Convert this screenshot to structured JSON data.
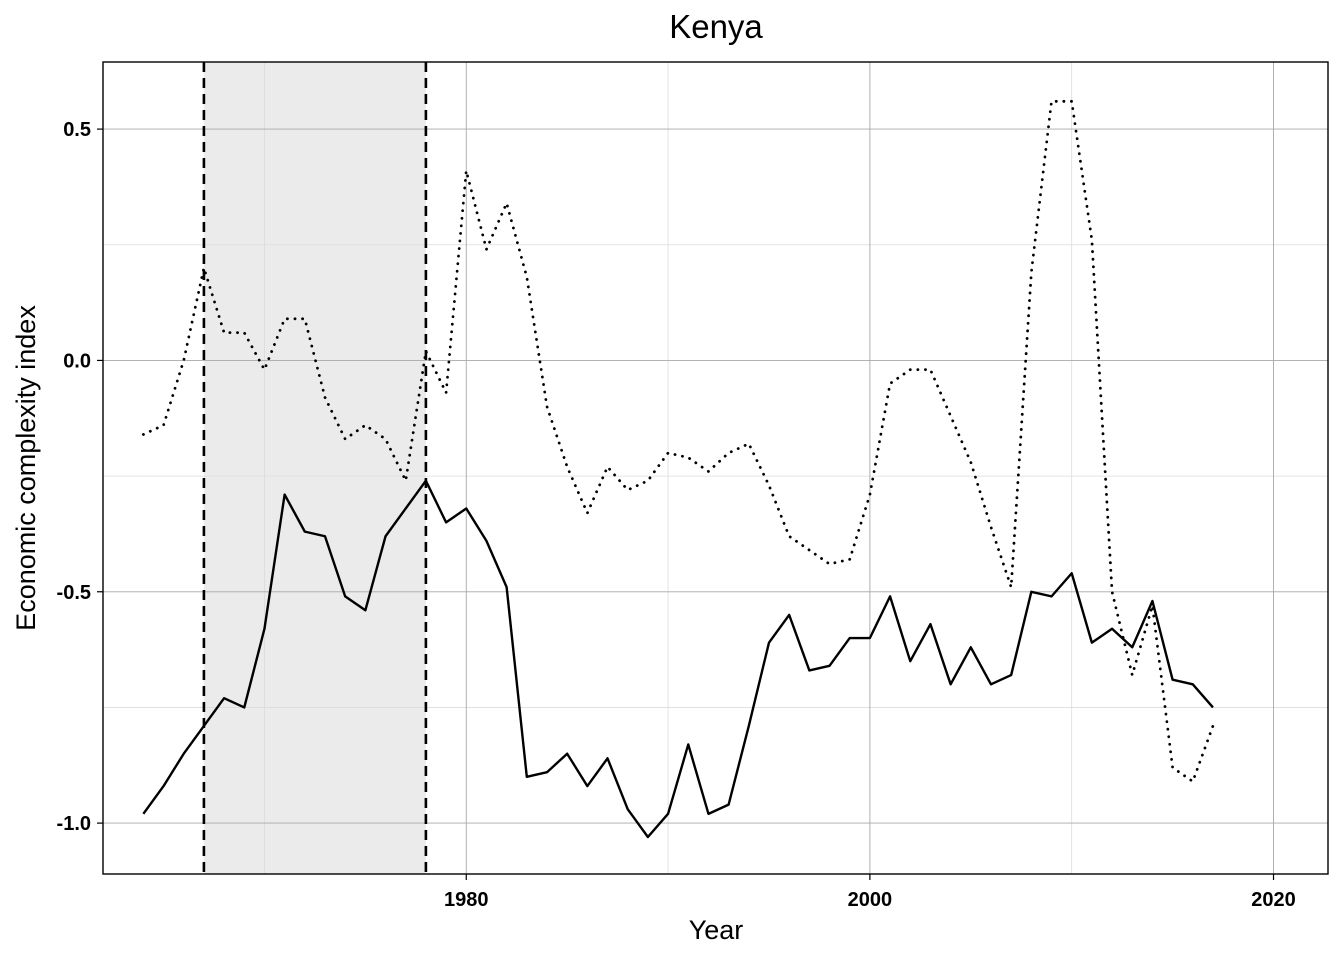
{
  "chart_data": {
    "type": "line",
    "title": "Kenya",
    "xlabel": "Year",
    "ylabel": "Economic complexity index",
    "xlim": [
      1962.0,
      2022.7
    ],
    "ylim": [
      -1.11,
      0.645
    ],
    "x_ticks": [
      1980,
      2000,
      2020
    ],
    "x_tick_labels": [
      "1980",
      "2000",
      "2020"
    ],
    "y_ticks": [
      -1.0,
      -0.5,
      0.0,
      0.5
    ],
    "y_tick_labels": [
      "-1.0",
      "-0.5",
      "0.0",
      "0.5"
    ],
    "grid": true,
    "legend": "none",
    "shaded_region": {
      "from": 1967,
      "to": 1978,
      "color": "#ebebeb"
    },
    "vertical_lines": [
      {
        "x": 1967,
        "style": "dashed"
      },
      {
        "x": 1978,
        "style": "dashed"
      }
    ],
    "x": [
      1964,
      1965,
      1966,
      1967,
      1968,
      1969,
      1970,
      1971,
      1972,
      1973,
      1974,
      1975,
      1976,
      1977,
      1978,
      1979,
      1980,
      1981,
      1982,
      1983,
      1984,
      1985,
      1986,
      1987,
      1988,
      1989,
      1990,
      1991,
      1992,
      1993,
      1994,
      1995,
      1996,
      1997,
      1998,
      1999,
      2000,
      2001,
      2002,
      2003,
      2004,
      2005,
      2006,
      2007,
      2008,
      2009,
      2010,
      2011,
      2012,
      2013,
      2014,
      2015,
      2016,
      2017
    ],
    "series": [
      {
        "style": "solid",
        "color": "#000000",
        "values": [
          -0.98,
          -0.92,
          -0.85,
          -0.79,
          -0.73,
          -0.75,
          -0.58,
          -0.29,
          -0.37,
          -0.38,
          -0.51,
          -0.54,
          -0.38,
          -0.32,
          -0.26,
          -0.35,
          -0.32,
          -0.39,
          -0.49,
          -0.9,
          -0.89,
          -0.85,
          -0.92,
          -0.86,
          -0.97,
          -1.03,
          -0.98,
          -0.83,
          -0.98,
          -0.96,
          -0.79,
          -0.61,
          -0.55,
          -0.67,
          -0.66,
          -0.6,
          -0.6,
          -0.51,
          -0.65,
          -0.57,
          -0.7,
          -0.62,
          -0.7,
          -0.68,
          -0.5,
          -0.51,
          -0.46,
          -0.61,
          -0.58,
          -0.62,
          -0.52,
          -0.69,
          -0.7,
          -0.75
        ]
      },
      {
        "style": "dotted",
        "color": "#000000",
        "values": [
          -0.16,
          -0.14,
          0.0,
          0.2,
          0.06,
          0.06,
          -0.02,
          0.09,
          0.09,
          -0.08,
          -0.17,
          -0.14,
          -0.17,
          -0.26,
          0.02,
          -0.07,
          0.41,
          0.24,
          0.34,
          0.18,
          -0.1,
          -0.23,
          -0.33,
          -0.23,
          -0.28,
          -0.26,
          -0.2,
          -0.21,
          -0.24,
          -0.2,
          -0.18,
          -0.27,
          -0.38,
          -0.41,
          -0.44,
          -0.43,
          -0.29,
          -0.05,
          -0.02,
          -0.02,
          -0.12,
          -0.22,
          -0.36,
          -0.49,
          0.19,
          0.56,
          0.56,
          0.26,
          -0.5,
          -0.68,
          -0.53,
          -0.88,
          -0.91,
          -0.79
        ]
      }
    ]
  }
}
